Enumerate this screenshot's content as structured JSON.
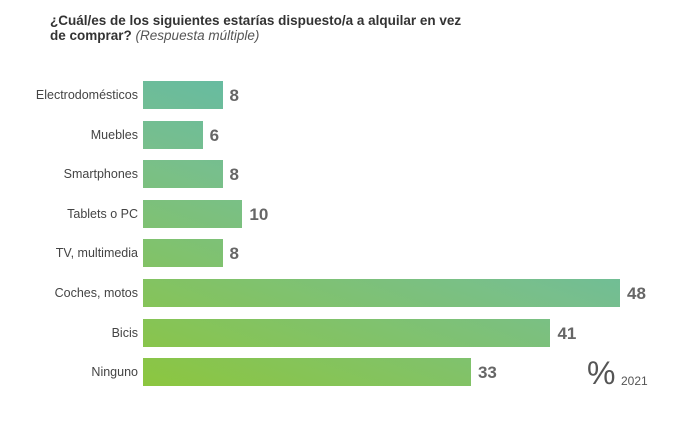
{
  "chart_data": {
    "type": "bar",
    "orientation": "horizontal",
    "title": "¿Cuál/es de los siguientes estarías dispuesto/a a alquilar en vez de comprar?",
    "subtitle": "(Respuesta múltiple)",
    "categories": [
      "Electrodomésticos",
      "Muebles",
      "Smartphones",
      "Tablets o PC",
      "TV, multimedia",
      "Coches, motos",
      "Bicis",
      "Ninguno"
    ],
    "values": [
      8,
      6,
      8,
      10,
      8,
      48,
      41,
      33
    ],
    "unit": "%",
    "year": "2021",
    "xlim": [
      0,
      48
    ],
    "colors": {
      "start": "#8cc63f",
      "mid": "#78bf8c",
      "end": "#4db5c0"
    }
  }
}
